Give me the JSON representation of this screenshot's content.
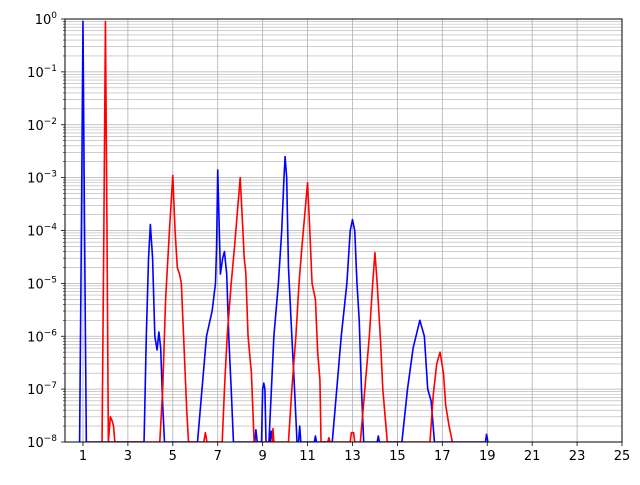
{
  "chart_data": {
    "type": "line",
    "title": "",
    "xlabel": "",
    "ylabel": "",
    "xlim": [
      0.2,
      25
    ],
    "ylim": [
      1e-08,
      1
    ],
    "yscale": "log",
    "grid": {
      "major": true,
      "minor": true,
      "color": "#b0b0b0"
    },
    "legend": "none",
    "x_ticks": [
      {
        "value": 1,
        "label": "1"
      },
      {
        "value": 3,
        "label": "3"
      },
      {
        "value": 5,
        "label": "5"
      },
      {
        "value": 7,
        "label": "7"
      },
      {
        "value": 9,
        "label": "9"
      },
      {
        "value": 11,
        "label": "11"
      },
      {
        "value": 13,
        "label": "13"
      },
      {
        "value": 15,
        "label": "15"
      },
      {
        "value": 17,
        "label": "17"
      },
      {
        "value": 19,
        "label": "19"
      },
      {
        "value": 21,
        "label": "21"
      },
      {
        "value": 23,
        "label": "23"
      },
      {
        "value": 25,
        "label": "25"
      }
    ],
    "y_ticks": [
      {
        "value": 1,
        "label": "10^0",
        "base": "10",
        "exp": "0"
      },
      {
        "value": 0.1,
        "label": "10^-1",
        "base": "10",
        "exp": "−1"
      },
      {
        "value": 0.01,
        "label": "10^-2",
        "base": "10",
        "exp": "−2"
      },
      {
        "value": 0.001,
        "label": "10^-3",
        "base": "10",
        "exp": "−3"
      },
      {
        "value": 0.0001,
        "label": "10^-4",
        "base": "10",
        "exp": "−4"
      },
      {
        "value": 1e-05,
        "label": "10^-5",
        "base": "10",
        "exp": "−5"
      },
      {
        "value": 1e-06,
        "label": "10^-6",
        "base": "10",
        "exp": "−6"
      },
      {
        "value": 1e-07,
        "label": "10^-7",
        "base": "10",
        "exp": "−7"
      },
      {
        "value": 1e-08,
        "label": "10^-8",
        "base": "10",
        "exp": "−8"
      }
    ],
    "series": [
      {
        "color": "#0000ff",
        "points": [
          [
            0.85,
            1e-08
          ],
          [
            0.93,
            0.0001
          ],
          [
            1.0,
            0.9
          ],
          [
            1.07,
            0.0001
          ],
          [
            1.15,
            1e-08
          ],
          [
            3.72,
            1e-08
          ],
          [
            3.82,
            1e-06
          ],
          [
            3.92,
            3e-05
          ],
          [
            4.0,
            0.00013
          ],
          [
            4.1,
            3e-05
          ],
          [
            4.2,
            1e-06
          ],
          [
            4.3,
            5.5e-07
          ],
          [
            4.38,
            1.2e-06
          ],
          [
            4.46,
            6e-07
          ],
          [
            4.55,
            5e-08
          ],
          [
            4.63,
            1e-08
          ],
          [
            6.1,
            1e-08
          ],
          [
            6.3,
            1e-07
          ],
          [
            6.5,
            1e-06
          ],
          [
            6.75,
            3e-06
          ],
          [
            6.9,
            1e-05
          ],
          [
            6.95,
            5e-05
          ],
          [
            7.0,
            0.0014
          ],
          [
            7.07,
            0.0001
          ],
          [
            7.12,
            1.5e-05
          ],
          [
            7.22,
            3e-05
          ],
          [
            7.3,
            4e-05
          ],
          [
            7.4,
            1.5e-05
          ],
          [
            7.5,
            8e-07
          ],
          [
            7.6,
            1e-07
          ],
          [
            7.7,
            1e-08
          ],
          [
            8.3,
            1e-08
          ],
          [
            8.38,
            1e-08
          ],
          [
            8.65,
            1e-08
          ],
          [
            8.7,
            1.7e-08
          ],
          [
            8.76,
            1e-08
          ],
          [
            8.95,
            1e-08
          ],
          [
            9.0,
            1e-07
          ],
          [
            9.05,
            1.3e-07
          ],
          [
            9.1,
            1e-07
          ],
          [
            9.15,
            1e-08
          ],
          [
            9.33,
            1e-08
          ],
          [
            9.38,
            1.6e-08
          ],
          [
            9.44,
            1e-08
          ],
          [
            9.28,
            1e-08
          ],
          [
            9.5,
            1e-06
          ],
          [
            9.7,
            1e-05
          ],
          [
            9.85,
            0.0001
          ],
          [
            9.95,
            0.001
          ],
          [
            10.0,
            0.0025
          ],
          [
            10.07,
            0.001
          ],
          [
            10.15,
            2e-05
          ],
          [
            10.3,
            1e-06
          ],
          [
            10.42,
            1e-07
          ],
          [
            10.53,
            1e-08
          ],
          [
            10.6,
            1e-08
          ],
          [
            10.65,
            2e-08
          ],
          [
            10.7,
            1e-08
          ],
          [
            11.3,
            1e-08
          ],
          [
            11.35,
            1.3e-08
          ],
          [
            11.4,
            1e-08
          ],
          [
            12.1,
            1e-08
          ],
          [
            12.3,
            1e-07
          ],
          [
            12.5,
            1e-06
          ],
          [
            12.75,
            1e-05
          ],
          [
            12.9,
            0.0001
          ],
          [
            13.0,
            0.00016
          ],
          [
            13.1,
            0.0001
          ],
          [
            13.2,
            1e-05
          ],
          [
            13.3,
            2e-06
          ],
          [
            13.4,
            1e-07
          ],
          [
            13.5,
            1e-08
          ],
          [
            14.1,
            1e-08
          ],
          [
            14.15,
            1.3e-08
          ],
          [
            14.2,
            1e-08
          ],
          [
            15.2,
            1e-08
          ],
          [
            15.45,
            1e-07
          ],
          [
            15.7,
            6e-07
          ],
          [
            16.0,
            2e-06
          ],
          [
            16.2,
            1e-06
          ],
          [
            16.35,
            1e-07
          ],
          [
            16.5,
            6e-08
          ],
          [
            16.65,
            1e-08
          ],
          [
            18.92,
            1e-08
          ],
          [
            18.97,
            1.4e-08
          ],
          [
            19.03,
            1e-08
          ]
        ]
      },
      {
        "color": "#ff0000",
        "points": [
          [
            1.85,
            1e-08
          ],
          [
            1.93,
            0.0001
          ],
          [
            2.0,
            0.9
          ],
          [
            2.07,
            0.0001
          ],
          [
            2.13,
            1e-08
          ],
          [
            2.22,
            3e-08
          ],
          [
            2.3,
            2.5e-08
          ],
          [
            2.36,
            2e-08
          ],
          [
            2.42,
            1e-08
          ],
          [
            4.42,
            1e-08
          ],
          [
            4.55,
            1e-07
          ],
          [
            4.68,
            5e-06
          ],
          [
            4.85,
            0.0001
          ],
          [
            5.0,
            0.0011
          ],
          [
            5.1,
            0.0001
          ],
          [
            5.2,
            2e-05
          ],
          [
            5.3,
            1.5e-05
          ],
          [
            5.38,
            1e-05
          ],
          [
            5.45,
            2e-06
          ],
          [
            5.58,
            1e-07
          ],
          [
            5.62,
            4e-08
          ],
          [
            5.7,
            1e-08
          ],
          [
            6.38,
            1e-08
          ],
          [
            6.45,
            1.5e-08
          ],
          [
            6.52,
            1e-08
          ],
          [
            7.2,
            1e-08
          ],
          [
            7.3,
            1e-07
          ],
          [
            7.42,
            1e-06
          ],
          [
            7.6,
            1e-05
          ],
          [
            7.75,
            5e-05
          ],
          [
            8.0,
            0.001
          ],
          [
            8.1,
            0.00015
          ],
          [
            8.18,
            3e-05
          ],
          [
            8.25,
            1.6e-05
          ],
          [
            8.35,
            1e-06
          ],
          [
            8.5,
            2e-07
          ],
          [
            8.62,
            1e-08
          ],
          [
            9.42,
            1e-08
          ],
          [
            9.46,
            1.8e-08
          ],
          [
            9.5,
            1e-08
          ],
          [
            10.15,
            1e-08
          ],
          [
            10.3,
            1e-07
          ],
          [
            10.48,
            1e-06
          ],
          [
            10.62,
            1e-05
          ],
          [
            10.75,
            5e-05
          ],
          [
            11.0,
            0.0008
          ],
          [
            11.1,
            0.0001
          ],
          [
            11.2,
            1e-05
          ],
          [
            11.35,
            5e-06
          ],
          [
            11.45,
            5e-07
          ],
          [
            11.55,
            1.5e-07
          ],
          [
            11.6,
            1e-08
          ],
          [
            11.9,
            1e-08
          ],
          [
            11.95,
            1.2e-08
          ],
          [
            12.0,
            1e-08
          ],
          [
            12.9,
            1e-08
          ],
          [
            12.95,
            1.5e-08
          ],
          [
            13.05,
            1.5e-08
          ],
          [
            13.1,
            1e-08
          ],
          [
            13.35,
            1e-08
          ],
          [
            13.55,
            1e-07
          ],
          [
            13.75,
            1e-06
          ],
          [
            13.9,
            1e-05
          ],
          [
            14.0,
            3.8e-05
          ],
          [
            14.1,
            1e-05
          ],
          [
            14.25,
            8e-07
          ],
          [
            14.35,
            1e-07
          ],
          [
            14.55,
            1e-08
          ],
          [
            16.45,
            1e-08
          ],
          [
            16.6,
            8e-08
          ],
          [
            16.75,
            3e-07
          ],
          [
            16.9,
            5e-07
          ],
          [
            17.05,
            2e-07
          ],
          [
            17.15,
            5e-08
          ],
          [
            17.3,
            2e-08
          ],
          [
            17.45,
            1e-08
          ]
        ]
      }
    ]
  }
}
